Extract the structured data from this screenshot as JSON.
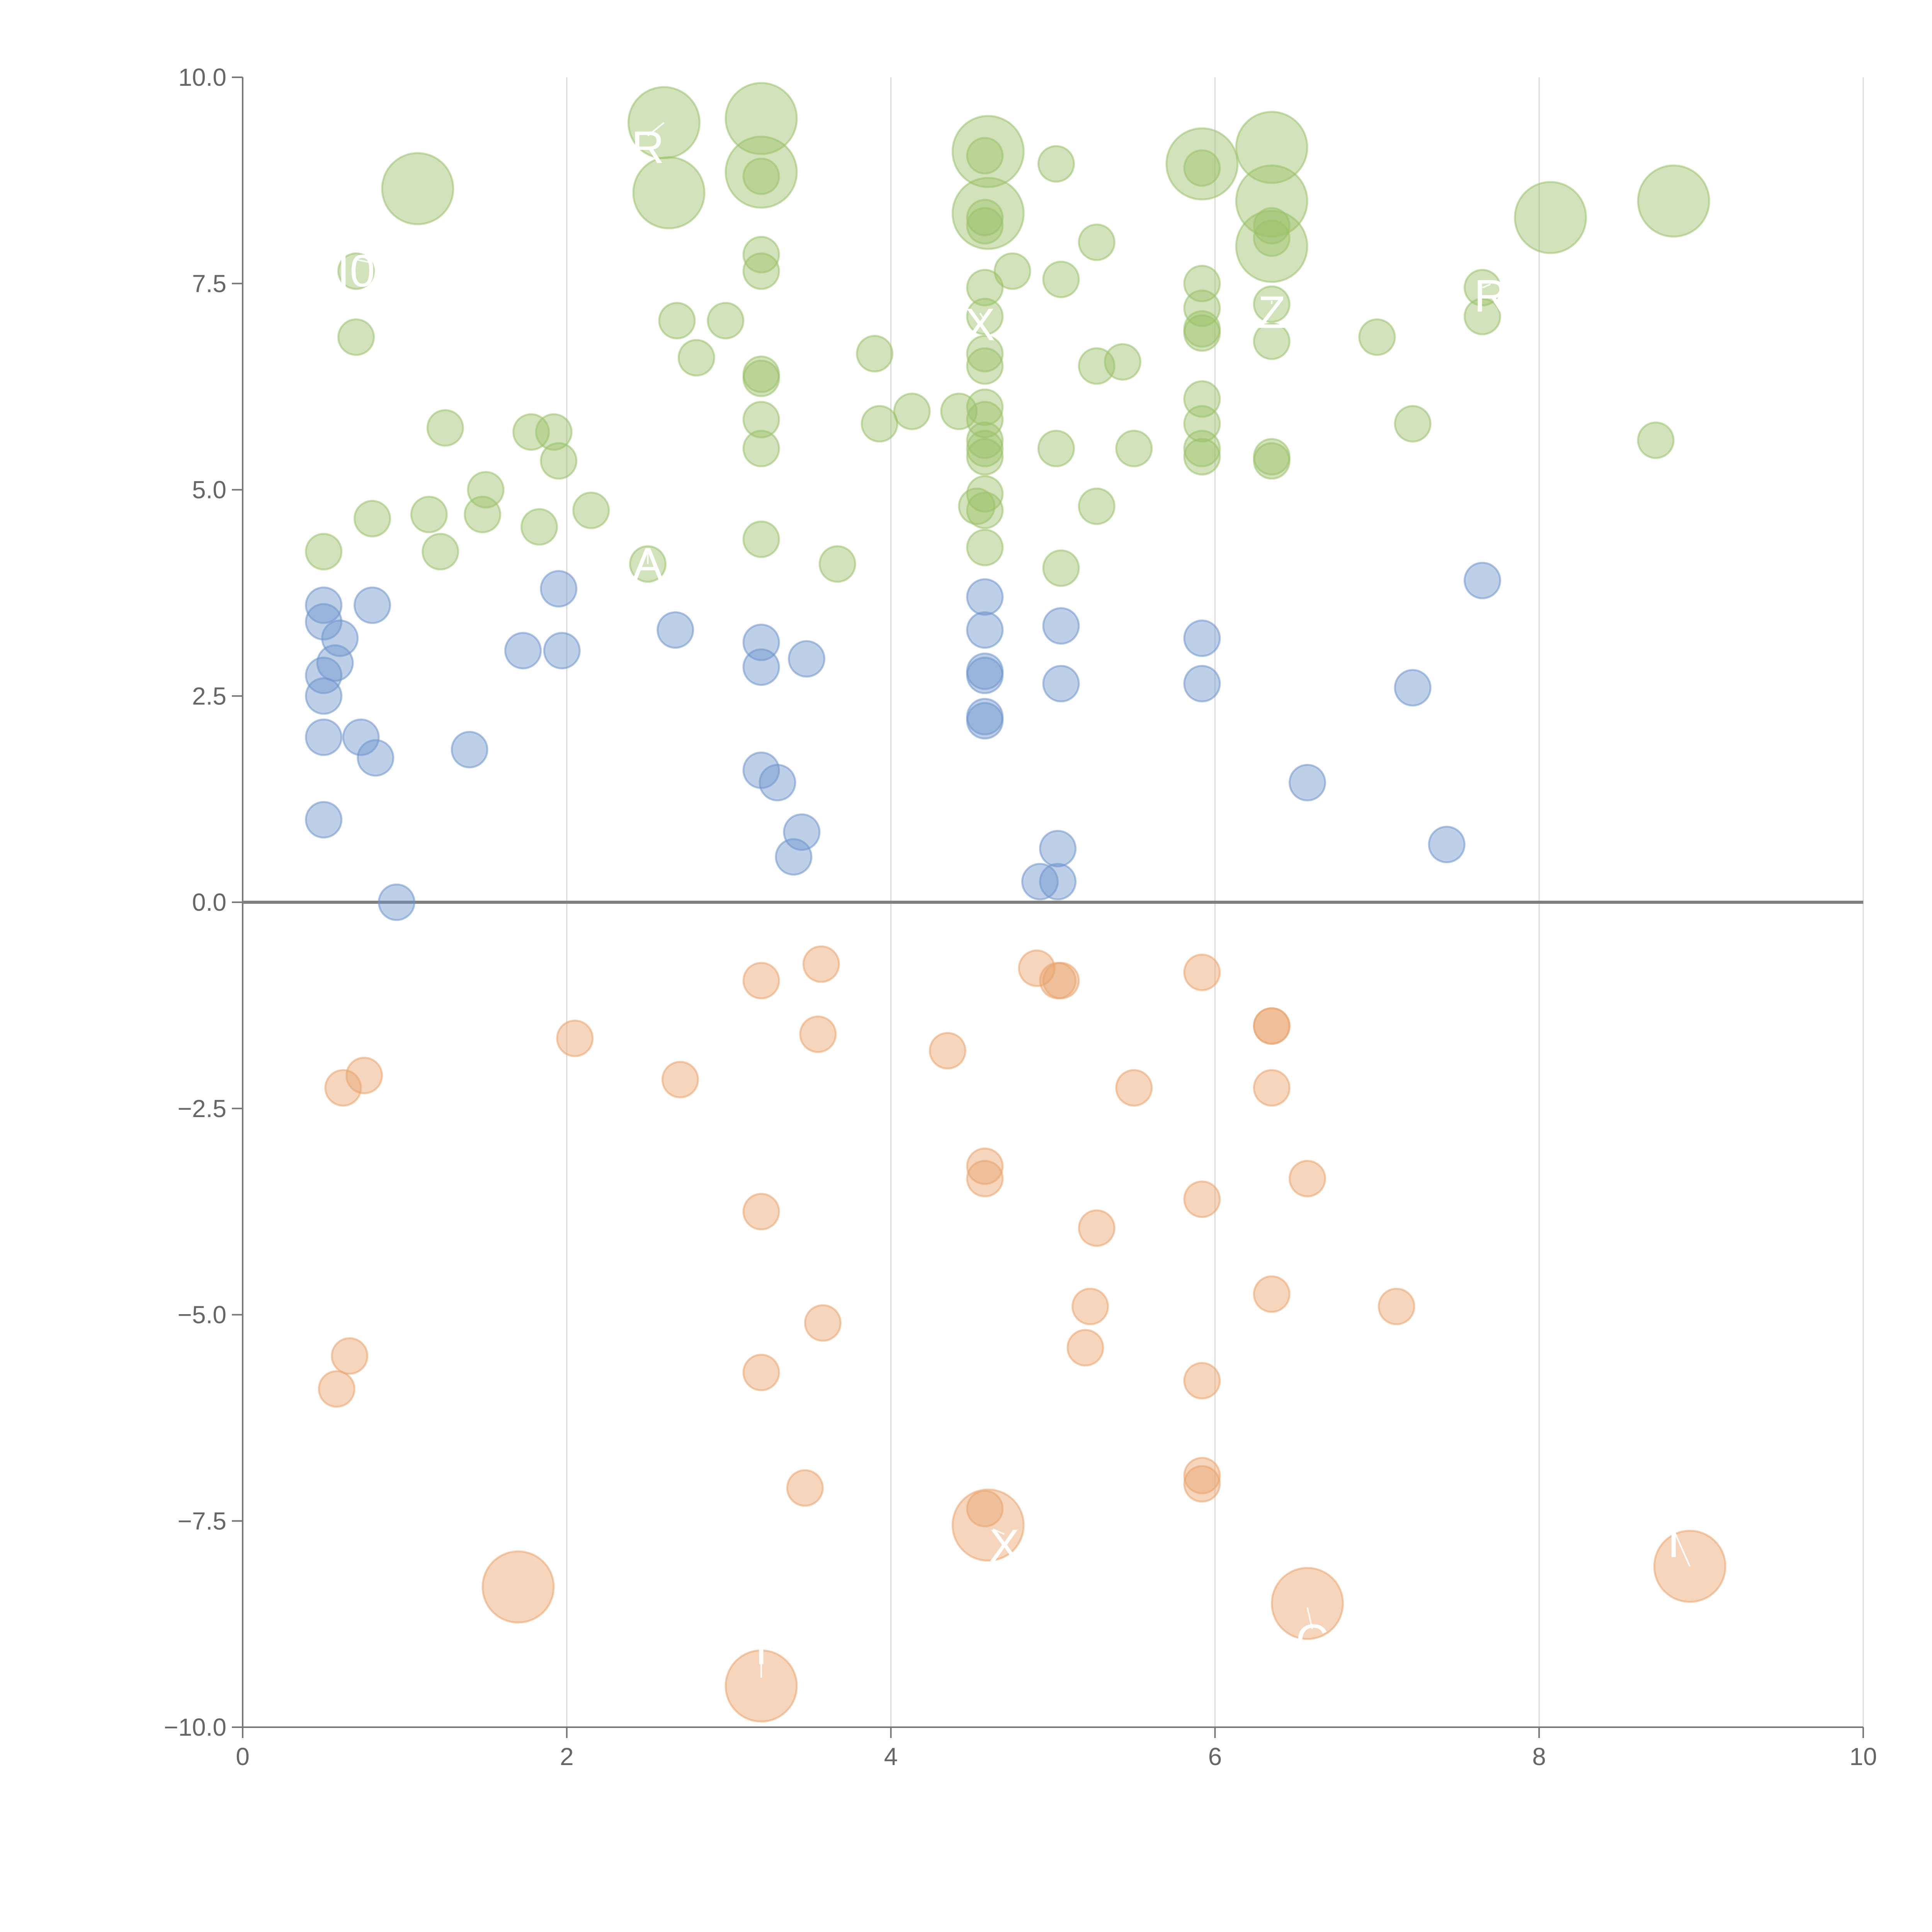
{
  "chart_data": {
    "type": "scatter",
    "title": "",
    "xlabel": "",
    "ylabel": "",
    "xlim": [
      0,
      10
    ],
    "ylim": [
      -10,
      10
    ],
    "grid": "vertical",
    "legend": "none",
    "x_ticks": [
      {
        "value": 0,
        "label": "0"
      },
      {
        "value": 2,
        "label": "2"
      },
      {
        "value": 4,
        "label": "4"
      },
      {
        "value": 6,
        "label": "6"
      },
      {
        "value": 8,
        "label": "8"
      },
      {
        "value": 10,
        "label": "10"
      }
    ],
    "y_ticks": [
      {
        "value": 10,
        "label": "10.0"
      },
      {
        "value": 7.5,
        "label": "7.5"
      },
      {
        "value": 5,
        "label": "5.0"
      },
      {
        "value": 2.5,
        "label": "2.5"
      },
      {
        "value": 0,
        "label": "0.0"
      },
      {
        "value": -2.5,
        "label": "−2.5"
      },
      {
        "value": -5,
        "label": "−5.0"
      },
      {
        "value": -7.5,
        "label": "−7.5"
      },
      {
        "value": -10,
        "label": "−10.0"
      }
    ],
    "series": [
      {
        "name": "green",
        "color": "#9bc169",
        "points": [
          [
            0.5,
            4.25,
            1
          ],
          [
            0.7,
            6.85,
            1
          ],
          [
            0.8,
            4.65,
            1
          ],
          [
            0.7,
            7.65,
            1
          ],
          [
            1.15,
            4.7,
            1
          ],
          [
            1.25,
            5.75,
            1
          ],
          [
            1.22,
            4.25,
            1
          ],
          [
            1.5,
            5.0,
            1
          ],
          [
            1.48,
            4.7,
            1
          ],
          [
            1.78,
            5.7,
            1
          ],
          [
            1.83,
            4.55,
            1
          ],
          [
            1.92,
            5.7,
            1
          ],
          [
            1.95,
            5.35,
            1
          ],
          [
            2.15,
            4.75,
            1
          ],
          [
            2.5,
            4.1,
            1
          ],
          [
            2.68,
            7.05,
            1
          ],
          [
            2.8,
            6.6,
            1
          ],
          [
            2.98,
            7.05,
            1
          ],
          [
            3.2,
            7.85,
            1
          ],
          [
            3.2,
            7.65,
            1
          ],
          [
            3.2,
            6.4,
            1
          ],
          [
            3.2,
            6.35,
            1
          ],
          [
            3.2,
            5.85,
            1
          ],
          [
            3.2,
            5.5,
            1
          ],
          [
            3.2,
            4.4,
            1
          ],
          [
            3.2,
            8.8,
            1
          ],
          [
            3.67,
            4.1,
            1
          ],
          [
            3.9,
            6.65,
            1
          ],
          [
            3.93,
            5.8,
            1
          ],
          [
            4.13,
            5.95,
            1
          ],
          [
            4.42,
            5.95,
            1
          ],
          [
            4.58,
            9.05,
            1
          ],
          [
            4.58,
            8.3,
            1
          ],
          [
            4.58,
            8.2,
            1
          ],
          [
            4.58,
            7.45,
            1
          ],
          [
            4.58,
            7.1,
            1
          ],
          [
            4.58,
            6.65,
            1
          ],
          [
            4.58,
            6.5,
            1
          ],
          [
            4.58,
            6.0,
            1
          ],
          [
            4.58,
            5.85,
            1
          ],
          [
            4.58,
            5.6,
            1
          ],
          [
            4.58,
            5.5,
            1
          ],
          [
            4.58,
            5.4,
            1
          ],
          [
            4.58,
            4.95,
            1
          ],
          [
            4.58,
            4.75,
            1
          ],
          [
            4.58,
            4.3,
            1
          ],
          [
            4.53,
            4.8,
            1
          ],
          [
            4.75,
            7.65,
            1
          ],
          [
            5.02,
            8.95,
            1
          ],
          [
            5.02,
            5.5,
            1
          ],
          [
            5.05,
            7.55,
            1
          ],
          [
            5.05,
            4.05,
            1
          ],
          [
            5.27,
            8.0,
            1
          ],
          [
            5.27,
            6.5,
            1
          ],
          [
            5.27,
            4.8,
            1
          ],
          [
            5.43,
            6.55,
            1
          ],
          [
            5.5,
            5.5,
            1
          ],
          [
            5.92,
            8.9,
            1
          ],
          [
            5.92,
            7.5,
            1
          ],
          [
            5.92,
            7.2,
            1
          ],
          [
            5.92,
            6.95,
            1
          ],
          [
            5.92,
            6.9,
            1
          ],
          [
            5.92,
            6.1,
            1
          ],
          [
            5.92,
            5.8,
            1
          ],
          [
            5.92,
            5.5,
            1
          ],
          [
            5.92,
            5.4,
            1
          ],
          [
            6.35,
            8.2,
            1
          ],
          [
            6.35,
            8.05,
            1
          ],
          [
            6.35,
            7.25,
            1
          ],
          [
            6.35,
            6.8,
            1
          ],
          [
            6.35,
            5.35,
            1
          ],
          [
            6.35,
            5.4,
            1
          ],
          [
            7.0,
            6.85,
            1
          ],
          [
            7.22,
            5.8,
            1
          ],
          [
            7.65,
            7.45,
            1
          ],
          [
            7.65,
            7.1,
            1
          ],
          [
            8.72,
            5.6,
            1
          ],
          [
            1.08,
            8.65,
            2
          ],
          [
            2.6,
            9.45,
            2
          ],
          [
            2.63,
            8.6,
            2
          ],
          [
            3.2,
            9.5,
            2
          ],
          [
            3.2,
            8.85,
            2
          ],
          [
            4.6,
            9.1,
            2
          ],
          [
            4.6,
            8.35,
            2
          ],
          [
            5.92,
            8.95,
            2
          ],
          [
            6.35,
            9.15,
            2
          ],
          [
            6.35,
            8.5,
            2
          ],
          [
            6.35,
            7.95,
            2
          ],
          [
            8.07,
            8.3,
            2
          ],
          [
            8.83,
            8.5,
            2
          ]
        ]
      },
      {
        "name": "blue",
        "color": "#6e95cc",
        "points": [
          [
            0.5,
            3.6,
            1
          ],
          [
            0.5,
            3.4,
            1
          ],
          [
            0.6,
            3.2,
            1
          ],
          [
            0.57,
            2.9,
            1
          ],
          [
            0.5,
            2.75,
            1
          ],
          [
            0.5,
            2.5,
            1
          ],
          [
            0.5,
            2.0,
            1
          ],
          [
            0.5,
            1.0,
            1
          ],
          [
            0.73,
            2.0,
            1
          ],
          [
            0.8,
            3.6,
            1
          ],
          [
            0.82,
            1.75,
            1
          ],
          [
            0.95,
            0.0,
            1
          ],
          [
            1.4,
            1.85,
            1
          ],
          [
            1.73,
            3.05,
            1
          ],
          [
            1.95,
            3.8,
            1
          ],
          [
            1.97,
            3.05,
            1
          ],
          [
            2.67,
            3.3,
            1
          ],
          [
            3.2,
            3.15,
            1
          ],
          [
            3.2,
            2.85,
            1
          ],
          [
            3.2,
            1.6,
            1
          ],
          [
            3.3,
            1.45,
            1
          ],
          [
            3.45,
            0.85,
            1
          ],
          [
            3.4,
            0.55,
            1
          ],
          [
            3.48,
            2.95,
            1
          ],
          [
            4.58,
            3.7,
            1
          ],
          [
            4.58,
            3.3,
            1
          ],
          [
            4.58,
            2.8,
            1
          ],
          [
            4.58,
            2.75,
            1
          ],
          [
            4.58,
            2.25,
            1
          ],
          [
            4.58,
            2.2,
            1
          ],
          [
            4.92,
            0.25,
            1
          ],
          [
            5.03,
            0.65,
            1
          ],
          [
            5.03,
            0.25,
            1
          ],
          [
            5.05,
            3.35,
            1
          ],
          [
            5.05,
            2.65,
            1
          ],
          [
            5.92,
            3.2,
            1
          ],
          [
            5.92,
            2.65,
            1
          ],
          [
            6.57,
            1.45,
            1
          ],
          [
            7.22,
            2.6,
            1
          ],
          [
            7.43,
            0.7,
            1
          ],
          [
            7.65,
            3.9,
            1
          ]
        ]
      },
      {
        "name": "orange",
        "color": "#e9a46c",
        "points": [
          [
            0.62,
            -2.25,
            1
          ],
          [
            0.75,
            -2.1,
            1
          ],
          [
            0.66,
            -5.5,
            1
          ],
          [
            0.58,
            -5.9,
            1
          ],
          [
            2.05,
            -1.65,
            1
          ],
          [
            2.7,
            -2.15,
            1
          ],
          [
            3.2,
            -0.95,
            1
          ],
          [
            3.2,
            -3.75,
            1
          ],
          [
            3.2,
            -5.7,
            1
          ],
          [
            3.57,
            -0.75,
            1
          ],
          [
            3.55,
            -1.6,
            1
          ],
          [
            3.58,
            -5.1,
            1
          ],
          [
            3.47,
            -7.1,
            1
          ],
          [
            4.35,
            -1.8,
            1
          ],
          [
            4.58,
            -3.2,
            1
          ],
          [
            4.58,
            -3.35,
            1
          ],
          [
            4.58,
            -7.35,
            1
          ],
          [
            4.9,
            -0.8,
            1
          ],
          [
            5.03,
            -0.95,
            1
          ],
          [
            5.05,
            -0.95,
            1
          ],
          [
            5.23,
            -4.9,
            1
          ],
          [
            5.2,
            -5.4,
            1
          ],
          [
            5.27,
            -3.95,
            1
          ],
          [
            5.5,
            -2.25,
            1
          ],
          [
            5.92,
            -0.85,
            1
          ],
          [
            5.92,
            -3.6,
            1
          ],
          [
            5.92,
            -5.8,
            1
          ],
          [
            5.92,
            -6.95,
            1
          ],
          [
            5.92,
            -7.05,
            1
          ],
          [
            6.35,
            -1.5,
            1
          ],
          [
            6.35,
            -1.5,
            1
          ],
          [
            6.35,
            -2.25,
            1
          ],
          [
            6.35,
            -4.75,
            1
          ],
          [
            6.57,
            -3.35,
            1
          ],
          [
            7.12,
            -4.9,
            1
          ],
          [
            1.7,
            -8.3,
            2
          ],
          [
            3.2,
            -9.5,
            2
          ],
          [
            4.6,
            -7.55,
            2
          ],
          [
            6.57,
            -8.5,
            2
          ],
          [
            8.93,
            -8.05,
            2
          ]
        ]
      }
    ],
    "annotations": [
      {
        "text": "R",
        "x": 2.5,
        "y": 9.15,
        "px": 2.6,
        "py": 9.45
      },
      {
        "text": "I0",
        "x": 0.7,
        "y": 7.65,
        "px": 0.8,
        "py": 7.75
      },
      {
        "text": "A",
        "x": 2.5,
        "y": 4.1,
        "px": 2.5,
        "py": 4.1
      },
      {
        "text": "X",
        "x": 4.55,
        "y": 7.0,
        "px": 4.58,
        "py": 7.05
      },
      {
        "text": "Z",
        "x": 6.35,
        "y": 7.15,
        "px": 6.35,
        "py": 7.25
      },
      {
        "text": "R",
        "x": 7.7,
        "y": 7.35,
        "px": 7.65,
        "py": 7.45
      },
      {
        "text": "X",
        "x": 4.7,
        "y": -7.8,
        "px": 4.63,
        "py": -7.6
      },
      {
        "text": "C",
        "x": 6.6,
        "y": -8.95,
        "px": 6.57,
        "py": -8.55
      },
      {
        "text": "T",
        "x": 8.83,
        "y": -7.75,
        "px": 8.93,
        "py": -8.05
      },
      {
        "text": "T",
        "x": 3.2,
        "y": -9.05,
        "px": 3.2,
        "py": -9.4
      }
    ]
  }
}
